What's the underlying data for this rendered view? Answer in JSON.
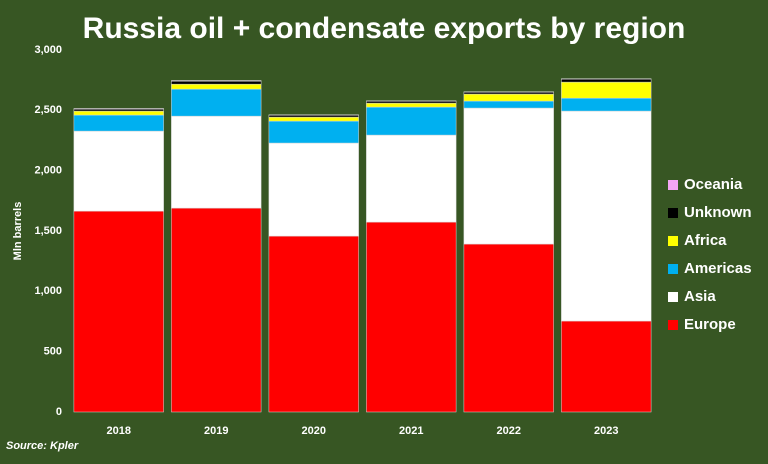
{
  "chart_data": {
    "type": "stacked_bar",
    "title": "Russia oil + condensate exports by region",
    "y_label": "Mln barrels",
    "source": "Source: Kpler",
    "categories": [
      "2018",
      "2019",
      "2020",
      "2021",
      "2022",
      "2023"
    ],
    "series": [
      {
        "name": "Europe",
        "color": "#ff0000",
        "values": [
          1665,
          1690,
          1458,
          1574,
          1392,
          754
        ]
      },
      {
        "name": "Asia",
        "color": "#ffffff",
        "values": [
          663,
          762,
          771,
          721,
          1127,
          1740
        ]
      },
      {
        "name": "Americas",
        "color": "#00b0f0",
        "values": [
          133,
          224,
          182,
          232,
          58,
          107
        ]
      },
      {
        "name": "Africa",
        "color": "#ffff00",
        "values": [
          33,
          41,
          33,
          33,
          58,
          133
        ]
      },
      {
        "name": "Unknown",
        "color": "#000000",
        "values": [
          16,
          25,
          16,
          16,
          16,
          25
        ]
      },
      {
        "name": "Oceania",
        "color": "#f4a6f4",
        "values": [
          5,
          5,
          3,
          3,
          3,
          3
        ]
      }
    ],
    "ylim": [
      0,
      3000
    ],
    "yticks": [
      0,
      500,
      {
        "value": 1000,
        "label": "1,000"
      },
      {
        "value": 1500,
        "label": "1,500"
      },
      {
        "value": 2000,
        "label": "2,000"
      },
      {
        "value": 2500,
        "label": "2,500"
      },
      {
        "value": 3000,
        "label": "3,000"
      }
    ],
    "legend": "right"
  }
}
